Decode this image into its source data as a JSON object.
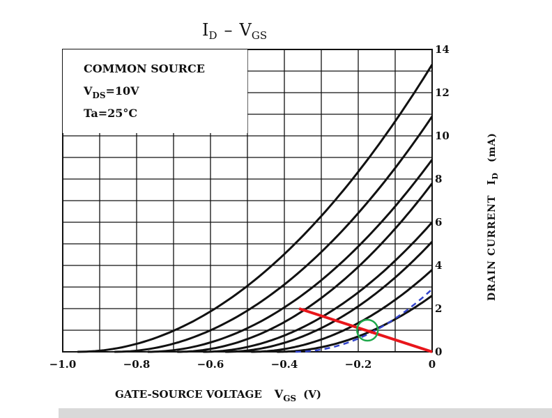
{
  "chart_data": {
    "type": "line",
    "title_main": "I",
    "title_main_sub": "D",
    "title_dash": "–",
    "title_v": "V",
    "title_v_sub": "GS",
    "xlabel": "GATE-SOURCE VOLTAGE",
    "xlabel_sym": "V",
    "xlabel_sym_sub": "GS",
    "xlabel_unit": "(V)",
    "ylabel": "DRAIN CURRENT",
    "ylabel_sym": "I",
    "ylabel_sym_sub": "D",
    "ylabel_unit": "(mA)",
    "xlim": [
      -1.0,
      0
    ],
    "ylim": [
      0,
      14
    ],
    "x_ticks": [
      -1.0,
      -0.8,
      -0.6,
      -0.4,
      -0.2,
      0
    ],
    "x_tick_labels": [
      "−1.0",
      "−0.8",
      "−0.6",
      "−0.4",
      "−0.2",
      "0"
    ],
    "y_ticks": [
      0,
      2,
      4,
      6,
      8,
      10,
      12,
      14
    ],
    "y_tick_labels": [
      "0",
      "2",
      "4",
      "6",
      "8",
      "10",
      "12",
      "14"
    ],
    "grid": true,
    "conditions": {
      "line1": "COMMON SOURCE",
      "line2_sym": "V",
      "line2_sub": "DS",
      "line2_val": "=10V",
      "line3": "Ta=25°C"
    },
    "series": [
      {
        "pinchoff": -0.96,
        "idss": 13.3,
        "color": "#111111",
        "style": "solid"
      },
      {
        "pinchoff": -0.86,
        "idss": 10.9,
        "color": "#111111",
        "style": "solid"
      },
      {
        "pinchoff": -0.77,
        "idss": 8.9,
        "color": "#111111",
        "style": "solid"
      },
      {
        "pinchoff": -0.69,
        "idss": 7.8,
        "color": "#111111",
        "style": "solid"
      },
      {
        "pinchoff": -0.62,
        "idss": 6.0,
        "color": "#111111",
        "style": "solid"
      },
      {
        "pinchoff": -0.56,
        "idss": 5.1,
        "color": "#111111",
        "style": "solid"
      },
      {
        "pinchoff": -0.49,
        "idss": 3.8,
        "color": "#111111",
        "style": "solid"
      },
      {
        "pinchoff": -0.42,
        "idss": 2.6,
        "color": "#111111",
        "style": "solid"
      },
      {
        "pinchoff": -0.37,
        "idss": 2.9,
        "color": "#3344cc",
        "style": "dashed"
      }
    ],
    "load_line": {
      "x": [
        -0.36,
        0
      ],
      "y": [
        2.0,
        0
      ],
      "color": "#e8161b"
    },
    "operating_point": {
      "x": -0.175,
      "y": 1.0,
      "color": "#1ea84a"
    }
  }
}
